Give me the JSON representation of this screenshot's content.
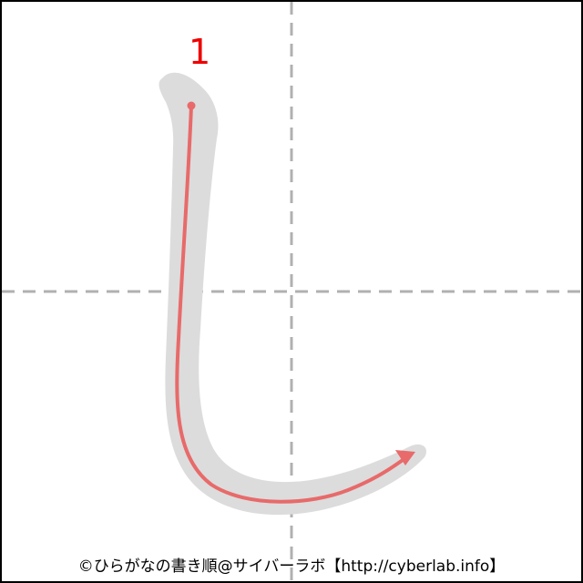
{
  "character": "し",
  "stroke_count": 1,
  "strokes": [
    {
      "order_label": "1"
    }
  ],
  "colors": {
    "frame": "#000000",
    "guide_lines": "#b0b0b0",
    "glyph_fill": "#dcdcdc",
    "stroke_path": "#e86a6a",
    "stroke_number": "#ee0000"
  },
  "credit": "©ひらがなの書き順@サイバーラボ【http://cyberlab.info】"
}
